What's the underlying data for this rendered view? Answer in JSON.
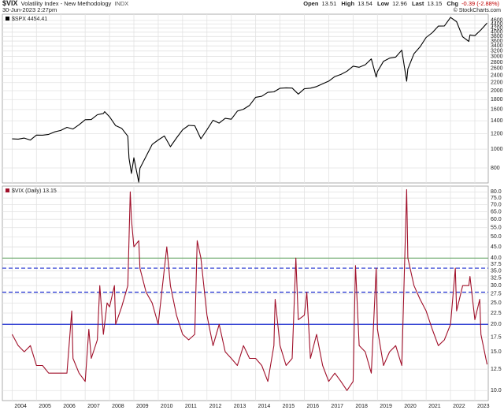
{
  "header": {
    "symbol": "$VIX",
    "title": "Volatility Index - New Methodology",
    "exchange": "INDX",
    "timestamp": "30-Jun-2023 2:27pm",
    "quote": [
      {
        "label": "Open",
        "value": "13.51"
      },
      {
        "label": "High",
        "value": "13.54"
      },
      {
        "label": "Low",
        "value": "12.96"
      },
      {
        "label": "Last",
        "value": "13.15"
      },
      {
        "label": "Chg",
        "value": "-0.39 (-2.88%)"
      }
    ],
    "credit": "© StockCharts.com"
  },
  "chart_data": [
    {
      "type": "line",
      "legend": "$SPX 4454.41",
      "color": "#000000",
      "log": true,
      "grid": true,
      "xlim": [
        2003.6,
        2023.55
      ],
      "xticks": [
        2004,
        2005,
        2006,
        2007,
        2008,
        2009,
        2010,
        2011,
        2012,
        2013,
        2014,
        2015,
        2016,
        2017,
        2018,
        2019,
        2020,
        2021,
        2022,
        2023
      ],
      "ylim": [
        670,
        4950
      ],
      "yticks": [
        800,
        1000,
        1200,
        1400,
        1600,
        1800,
        2000,
        2200,
        2400,
        2600,
        2800,
        3000,
        3200,
        3400,
        3600,
        3800,
        4000,
        4200,
        4400,
        4600
      ],
      "x": [
        2004,
        2004.25,
        2004.5,
        2004.75,
        2005,
        2005.25,
        2005.5,
        2005.75,
        2006,
        2006.25,
        2006.5,
        2006.75,
        2007,
        2007.25,
        2007.5,
        2007.75,
        2007.8,
        2008,
        2008.25,
        2008.5,
        2008.75,
        2008.8,
        2008.9,
        2009,
        2009.2,
        2009.25,
        2009.5,
        2009.75,
        2010,
        2010.25,
        2010.5,
        2010.75,
        2011,
        2011.25,
        2011.5,
        2011.75,
        2012,
        2012.25,
        2012.5,
        2012.75,
        2013,
        2013.25,
        2013.5,
        2013.75,
        2014,
        2014.25,
        2014.5,
        2014.75,
        2015,
        2015.25,
        2015.5,
        2015.75,
        2016,
        2016.25,
        2016.5,
        2016.75,
        2017,
        2017.25,
        2017.5,
        2017.75,
        2018,
        2018.25,
        2018.5,
        2018.75,
        2018.95,
        2019,
        2019.25,
        2019.5,
        2019.75,
        2020,
        2020.2,
        2020.25,
        2020.5,
        2020.75,
        2021,
        2021.25,
        2021.5,
        2021.75,
        2022,
        2022.25,
        2022.5,
        2022.75,
        2022.8,
        2023,
        2023.25,
        2023.5
      ],
      "values": [
        1130,
        1126,
        1140,
        1114,
        1181,
        1180,
        1191,
        1228,
        1248,
        1295,
        1270,
        1335,
        1418,
        1420,
        1503,
        1526,
        1560,
        1468,
        1322,
        1280,
        1166,
        900,
        750,
        903,
        676,
        797,
        919,
        1057,
        1115,
        1169,
        1030,
        1141,
        1258,
        1325,
        1320,
        1131,
        1258,
        1408,
        1362,
        1440,
        1426,
        1569,
        1606,
        1681,
        1848,
        1872,
        1960,
        1972,
        2058,
        2068,
        2063,
        1920,
        2044,
        2060,
        2099,
        2168,
        2238,
        2363,
        2423,
        2519,
        2674,
        2640,
        2718,
        2914,
        2351,
        2507,
        2834,
        2942,
        2977,
        3231,
        2237,
        2585,
        3100,
        3363,
        3756,
        3973,
        4297,
        4307,
        4766,
        4530,
        3785,
        3585,
        3872,
        3839,
        4109,
        4454
      ]
    },
    {
      "type": "line",
      "legend": "$VIX (Daily) 13.15",
      "color": "#a0102a",
      "log": true,
      "grid": true,
      "xlim": [
        2003.6,
        2023.55
      ],
      "xticks": [
        2004,
        2005,
        2006,
        2007,
        2008,
        2009,
        2010,
        2011,
        2012,
        2013,
        2014,
        2015,
        2016,
        2017,
        2018,
        2019,
        2020,
        2021,
        2022,
        2023
      ],
      "ylim": [
        9,
        85
      ],
      "yticks": [
        {
          "value": 10,
          "label": "10.0"
        },
        {
          "value": 12.5,
          "label": "12.5"
        },
        {
          "value": 15,
          "label": "15.0"
        },
        {
          "value": 17.5,
          "label": "17.5"
        },
        {
          "value": 20,
          "label": "20.0"
        },
        {
          "value": 22.5,
          "label": "22.5"
        },
        {
          "value": 25,
          "label": "25.0"
        },
        {
          "value": 27.5,
          "label": "27.5"
        },
        {
          "value": 30,
          "label": "30.0"
        },
        {
          "value": 32.5,
          "label": "32.5"
        },
        {
          "value": 35,
          "label": "35.0"
        },
        {
          "value": 37.5,
          "label": "37.5"
        },
        {
          "value": 40,
          "label": "40.0"
        },
        {
          "value": 45,
          "label": "45.0"
        },
        {
          "value": 50,
          "label": "50.0"
        },
        {
          "value": 55,
          "label": "55.0"
        },
        {
          "value": 60,
          "label": "60.0"
        },
        {
          "value": 65,
          "label": "65.0"
        },
        {
          "value": 70,
          "label": "70.0"
        },
        {
          "value": 75,
          "label": "75.0"
        },
        {
          "value": 80,
          "label": "80.0"
        }
      ],
      "reference_lines": [
        {
          "value": 40,
          "color": "#6aa86a",
          "dash": false
        },
        {
          "value": 36,
          "color": "#2030d0",
          "dash": true
        },
        {
          "value": 28,
          "color": "#2030d0",
          "dash": true
        },
        {
          "value": 20,
          "color": "#2030d0",
          "dash": false
        }
      ],
      "x": [
        2004,
        2004.25,
        2004.5,
        2004.75,
        2005,
        2005.25,
        2005.5,
        2005.75,
        2006,
        2006.25,
        2006.45,
        2006.5,
        2006.75,
        2007,
        2007.15,
        2007.25,
        2007.5,
        2007.6,
        2007.75,
        2007.9,
        2008,
        2008.2,
        2008.25,
        2008.5,
        2008.75,
        2008.85,
        2008.9,
        2009,
        2009.2,
        2009.25,
        2009.5,
        2009.75,
        2010,
        2010.35,
        2010.5,
        2010.75,
        2011,
        2011.25,
        2011.5,
        2011.6,
        2011.75,
        2012,
        2012.25,
        2012.5,
        2012.75,
        2013,
        2013.25,
        2013.5,
        2013.75,
        2014,
        2014.25,
        2014.5,
        2014.75,
        2014.8,
        2015,
        2015.25,
        2015.5,
        2015.65,
        2015.75,
        2016,
        2016.1,
        2016.25,
        2016.5,
        2016.75,
        2017,
        2017.25,
        2017.5,
        2017.75,
        2018,
        2018.1,
        2018.25,
        2018.5,
        2018.75,
        2018.95,
        2019,
        2019.25,
        2019.5,
        2019.75,
        2020,
        2020.2,
        2020.25,
        2020.5,
        2020.75,
        2021,
        2021.25,
        2021.5,
        2021.75,
        2022,
        2022.2,
        2022.25,
        2022.5,
        2022.75,
        2022.8,
        2023,
        2023.2,
        2023.25,
        2023.5
      ],
      "values": [
        18,
        16,
        15,
        16,
        13,
        13,
        12,
        12,
        12,
        12,
        23,
        14,
        12,
        11,
        19,
        14,
        17,
        30,
        18,
        25,
        24,
        30,
        20,
        24,
        30,
        80,
        60,
        45,
        48,
        36,
        28,
        25,
        20,
        45,
        30,
        22,
        18,
        17,
        18,
        48,
        40,
        22,
        16,
        20,
        15,
        14,
        13,
        16,
        14,
        14,
        13,
        11,
        16,
        26,
        16,
        13,
        14,
        40,
        21,
        22,
        28,
        14,
        18,
        13,
        11,
        12,
        11,
        10,
        11,
        37,
        16,
        15,
        12,
        36,
        19,
        13,
        15,
        16,
        13,
        82,
        40,
        30,
        26,
        23,
        19,
        16,
        17,
        20,
        36,
        23,
        30,
        30,
        33,
        21,
        26,
        18,
        13.15
      ]
    }
  ]
}
